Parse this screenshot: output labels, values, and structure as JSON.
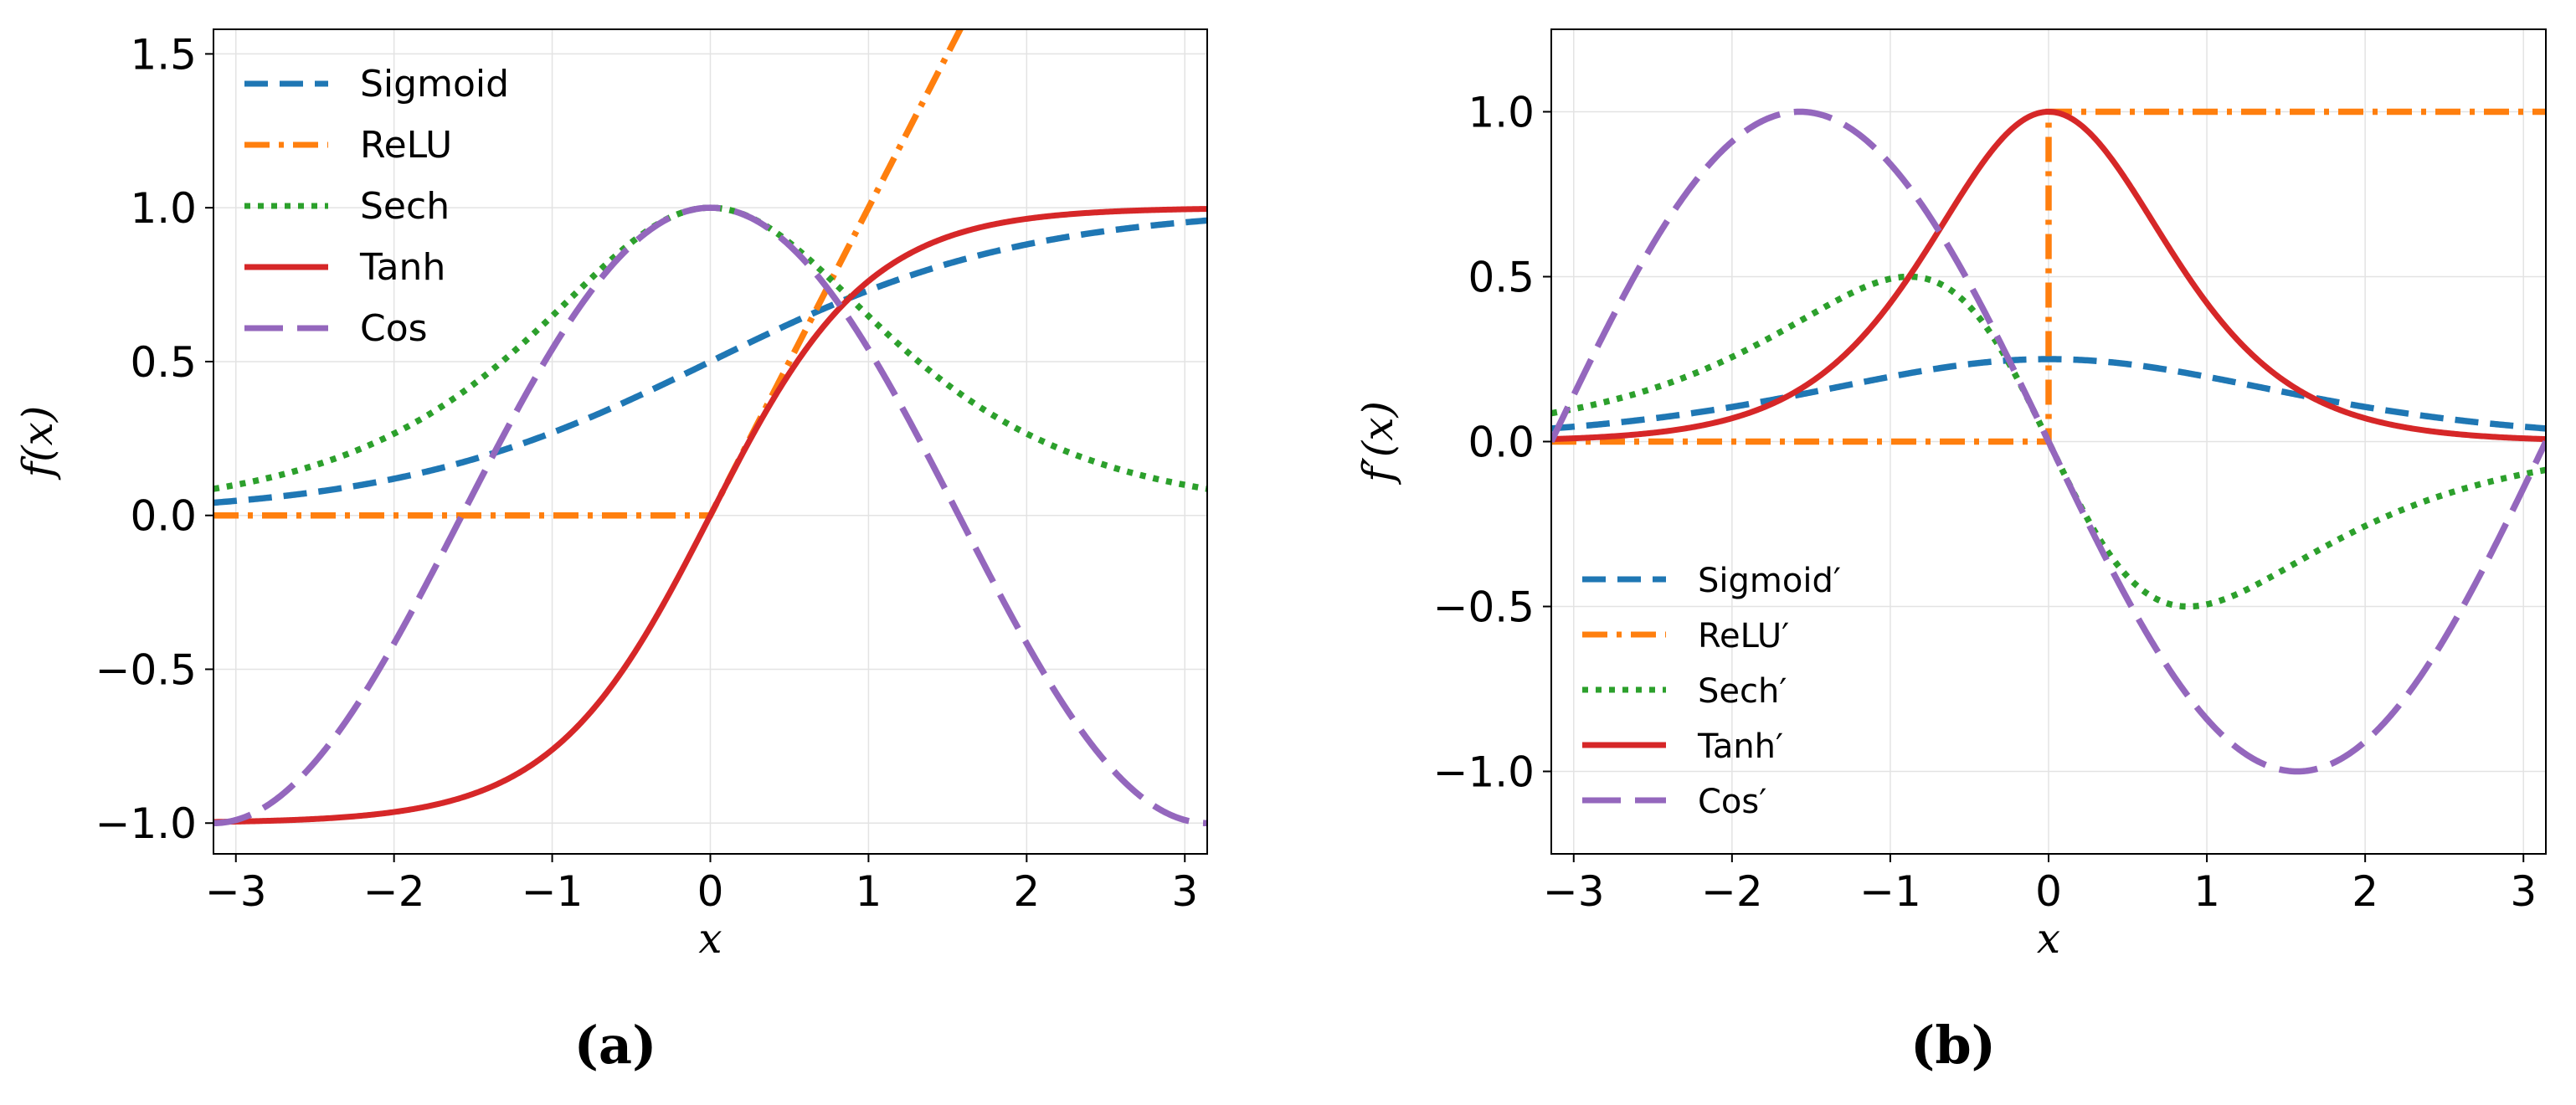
{
  "chart_data": [
    {
      "type": "line",
      "caption": "(a)",
      "xlabel": "x",
      "ylabel": "f(x)",
      "xlim": [
        -3.14159,
        3.14159
      ],
      "ylim": [
        -1.1,
        1.58
      ],
      "xticks": [
        -3,
        -2,
        -1,
        0,
        1,
        2,
        3
      ],
      "xtick_labels": [
        "−3",
        "−2",
        "−1",
        "0",
        "1",
        "2",
        "3"
      ],
      "yticks": [
        -1.0,
        -0.5,
        0.0,
        0.5,
        1.0,
        1.5
      ],
      "ytick_labels": [
        "−1.0",
        "−0.5",
        "0.0",
        "0.5",
        "1.0",
        "1.5"
      ],
      "grid": true,
      "legend_position": "top-left",
      "series": [
        {
          "name": "Sigmoid",
          "function": "sigmoid",
          "color": "#1f77b4",
          "style": "dashed"
        },
        {
          "name": "ReLU",
          "function": "relu",
          "color": "#ff7f0e",
          "style": "dashdot"
        },
        {
          "name": "Sech",
          "function": "sech",
          "color": "#2ca02c",
          "style": "dotted"
        },
        {
          "name": "Tanh",
          "function": "tanh",
          "color": "#d62728",
          "style": "solid"
        },
        {
          "name": "Cos",
          "function": "cos",
          "color": "#9467bd",
          "style": "longdash"
        }
      ]
    },
    {
      "type": "line",
      "caption": "(b)",
      "xlabel": "x",
      "ylabel": "f′(x)",
      "xlim": [
        -3.14159,
        3.14159
      ],
      "ylim": [
        -1.25,
        1.25
      ],
      "xticks": [
        -3,
        -2,
        -1,
        0,
        1,
        2,
        3
      ],
      "xtick_labels": [
        "−3",
        "−2",
        "−1",
        "0",
        "1",
        "2",
        "3"
      ],
      "yticks": [
        -1.0,
        -0.5,
        0.0,
        0.5,
        1.0
      ],
      "ytick_labels": [
        "−1.0",
        "−0.5",
        "0.0",
        "0.5",
        "1.0"
      ],
      "grid": true,
      "legend_position": "bottom-left",
      "series": [
        {
          "name": "Sigmoid′",
          "function": "dsigmoid",
          "color": "#1f77b4",
          "style": "dashed"
        },
        {
          "name": "ReLU′",
          "function": "drelu",
          "color": "#ff7f0e",
          "style": "dashdot"
        },
        {
          "name": "Sech′",
          "function": "dsech",
          "color": "#2ca02c",
          "style": "dotted"
        },
        {
          "name": "Tanh′",
          "function": "dtanh",
          "color": "#d62728",
          "style": "solid"
        },
        {
          "name": "Cos′",
          "function": "dcos",
          "color": "#9467bd",
          "style": "longdash"
        }
      ]
    }
  ]
}
